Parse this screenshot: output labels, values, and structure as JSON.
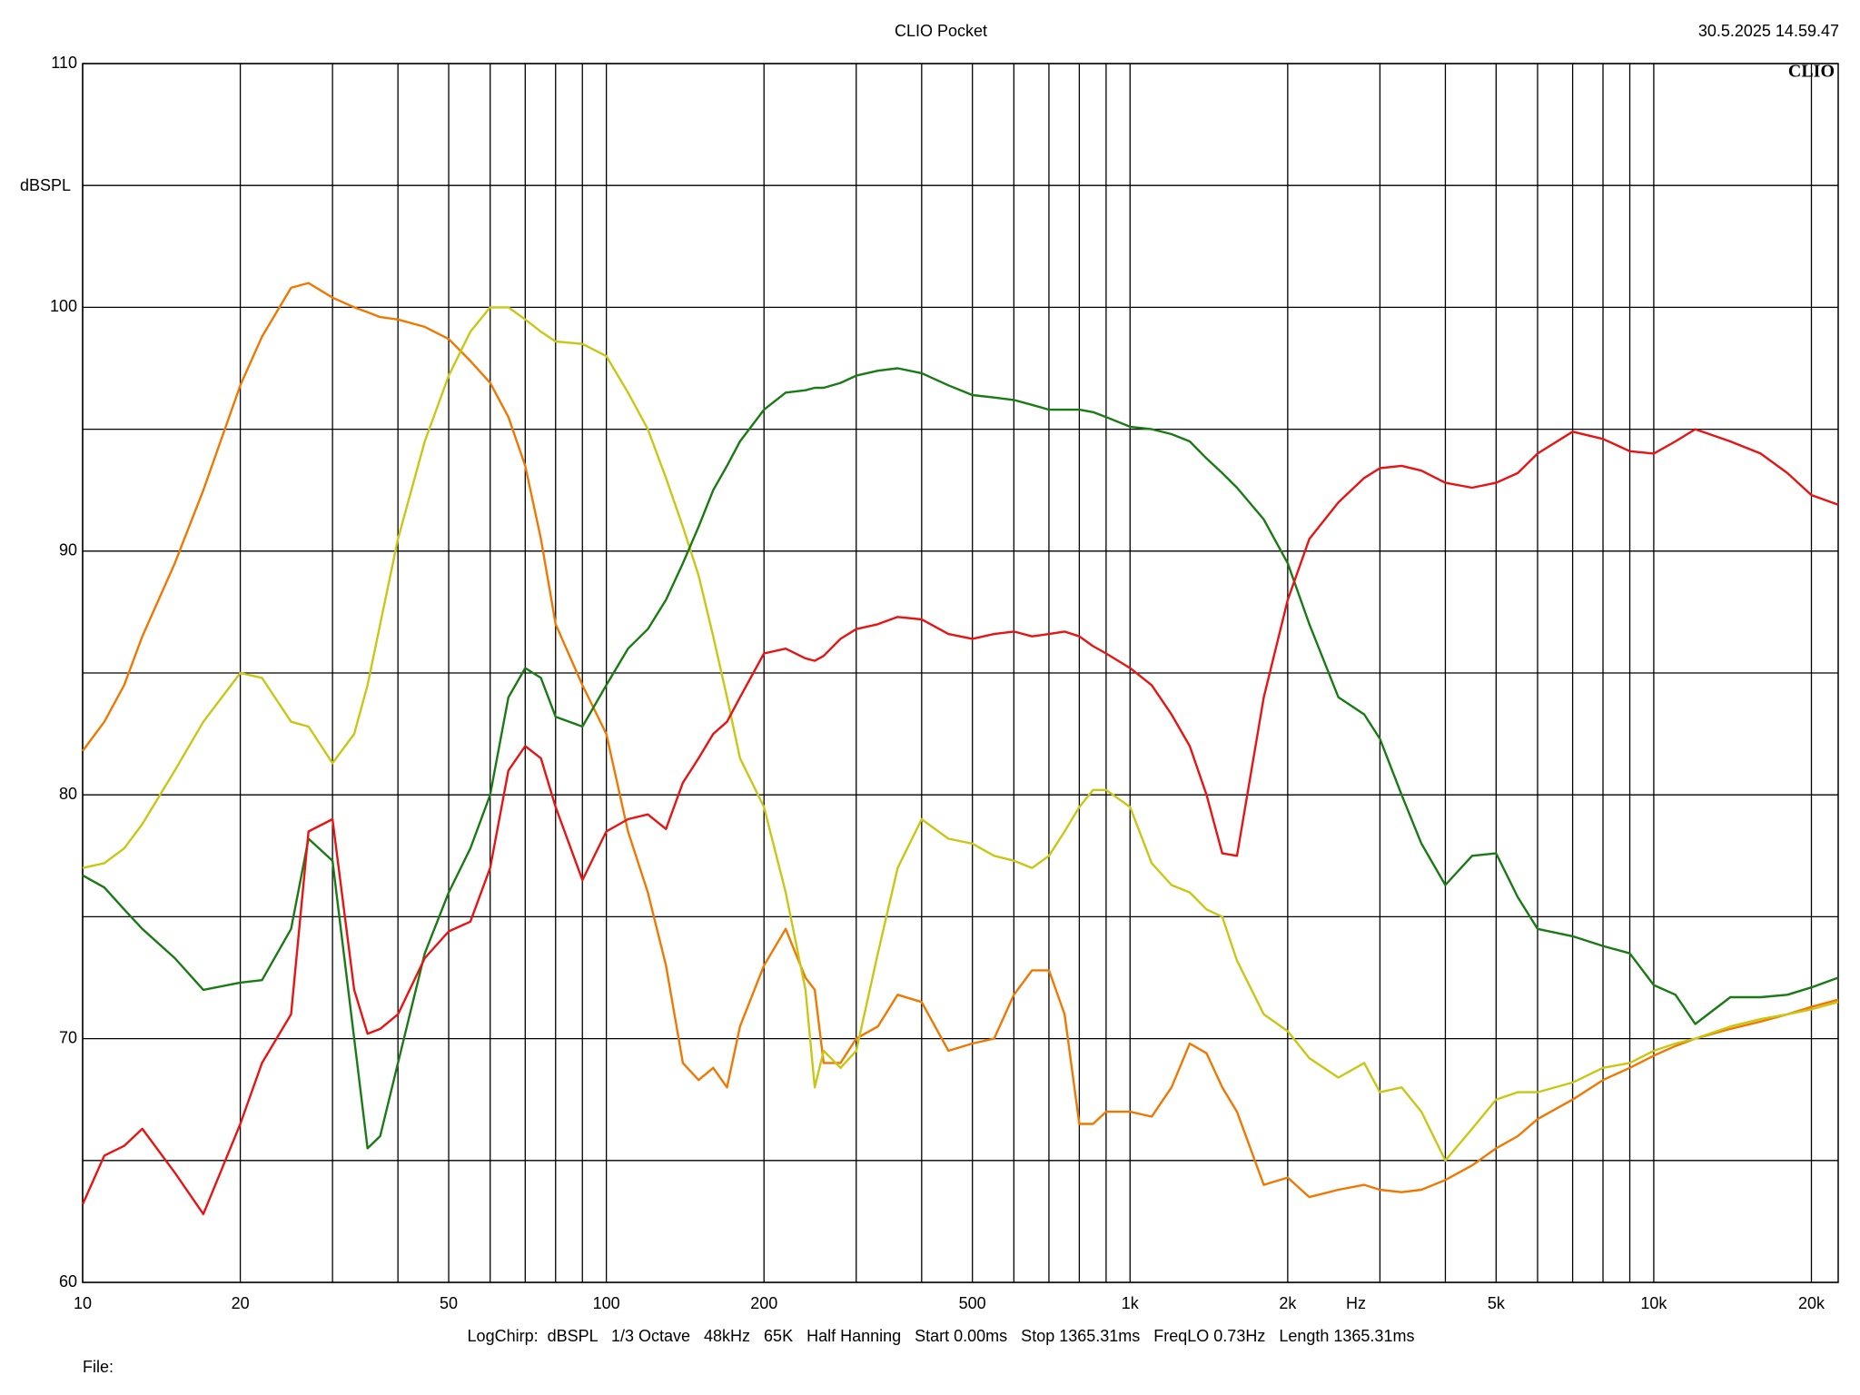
{
  "chart_data": {
    "type": "line",
    "title": "CLIO Pocket",
    "timestamp": "30.5.2025 14.59.47",
    "logo": "CLIO",
    "y_label": "dBSPL",
    "x_label": "Hz",
    "footer": "LogChirp:  dBSPL   1/3 Octave   48kHz   65K   Half Hanning   Start 0.00ms   Stop 1365.31ms   FreqLO 0.73Hz   Length 1365.31ms",
    "file_label": "File:",
    "x_log": true,
    "grid": true,
    "xlim": [
      10,
      22500
    ],
    "ylim": [
      60,
      110
    ],
    "xticks": [
      10,
      20,
      50,
      100,
      200,
      500,
      {
        "value": 1000,
        "label": "1k"
      },
      {
        "value": 2000,
        "label": "2k"
      },
      {
        "value": 5000,
        "label": "5k"
      },
      {
        "value": 10000,
        "label": "10k"
      },
      {
        "value": 20000,
        "label": "20k"
      }
    ],
    "xgrid": [
      30,
      40,
      60,
      70,
      80,
      90,
      300,
      400,
      600,
      700,
      800,
      900,
      3000,
      4000,
      6000,
      7000,
      8000,
      9000
    ],
    "yticks": [
      60,
      70,
      80,
      90,
      100,
      110
    ],
    "ygrid": [
      65,
      75,
      85,
      95,
      105
    ],
    "x": [
      10,
      11,
      12,
      13,
      15,
      17,
      20,
      22,
      25,
      27,
      30,
      33,
      35,
      37,
      40,
      45,
      50,
      55,
      60,
      65,
      70,
      75,
      80,
      90,
      100,
      110,
      120,
      130,
      140,
      150,
      160,
      170,
      180,
      200,
      220,
      240,
      250,
      260,
      280,
      300,
      330,
      360,
      400,
      450,
      500,
      550,
      600,
      650,
      700,
      750,
      800,
      850,
      900,
      1000,
      1100,
      1200,
      1300,
      1400,
      1500,
      1600,
      1800,
      2000,
      2200,
      2500,
      2800,
      3000,
      3300,
      3600,
      4000,
      4500,
      5000,
      5500,
      6000,
      7000,
      8000,
      9000,
      10000,
      11000,
      12000,
      14000,
      16000,
      18000,
      20000,
      22500
    ],
    "series": [
      {
        "color": "#f07800",
        "values": [
          81.8,
          83,
          84.5,
          86.5,
          89.5,
          92.5,
          96.8,
          98.8,
          100.8,
          101,
          100.4,
          100,
          99.8,
          99.6,
          99.5,
          99.2,
          98.7,
          97.8,
          96.9,
          95.5,
          93.5,
          90.5,
          87,
          84.5,
          82.5,
          78.5,
          76,
          73,
          69,
          68.3,
          68.8,
          68,
          70.5,
          73,
          74.5,
          72.5,
          72,
          69,
          69,
          70,
          70.5,
          71.8,
          71.5,
          69.5,
          69.8,
          70,
          71.8,
          72.8,
          72.8,
          71,
          66.5,
          66.5,
          67,
          67,
          66.8,
          68,
          69.8,
          69.4,
          68,
          67,
          64,
          64.3,
          63.5,
          63.8,
          64,
          63.8,
          63.7,
          63.8,
          64.2,
          64.8,
          65.5,
          66,
          66.7,
          67.5,
          68.3,
          68.8,
          69.3,
          69.7,
          70,
          70.4,
          70.7,
          71,
          71.3,
          71.6
        ]
      },
      {
        "color": "#c8c814",
        "values": [
          77,
          77.2,
          77.8,
          78.8,
          81,
          83,
          85,
          84.8,
          83,
          82.8,
          81.3,
          82.5,
          84.5,
          87,
          90.5,
          94.5,
          97.2,
          99,
          100,
          100,
          99.5,
          99,
          98.6,
          98.5,
          98,
          96.5,
          95,
          93,
          91,
          89,
          86.5,
          84,
          81.5,
          79.5,
          76,
          72,
          68,
          69.5,
          68.8,
          69.5,
          73.5,
          77,
          79,
          78.2,
          78,
          77.5,
          77.3,
          77,
          77.5,
          78.5,
          79.5,
          80.2,
          80.2,
          79.5,
          77.2,
          76.3,
          76,
          75.3,
          75,
          73.2,
          71,
          70.3,
          69.2,
          68.4,
          69,
          67.8,
          68,
          67,
          65,
          66.3,
          67.5,
          67.8,
          67.8,
          68.2,
          68.8,
          69,
          69.5,
          69.8,
          70,
          70.5,
          70.8,
          71,
          71.2,
          71.5
        ]
      },
      {
        "color": "#1a7a14",
        "values": [
          76.7,
          76.2,
          75.3,
          74.5,
          73.3,
          72,
          72.3,
          72.4,
          74.5,
          78.2,
          77.3,
          70,
          65.5,
          66,
          69,
          73.5,
          76,
          77.8,
          80,
          84,
          85.2,
          84.8,
          83.2,
          82.8,
          84.5,
          86,
          86.8,
          88,
          89.5,
          91,
          92.5,
          93.5,
          94.5,
          95.8,
          96.5,
          96.6,
          96.7,
          96.7,
          96.9,
          97.2,
          97.4,
          97.5,
          97.3,
          96.8,
          96.4,
          96.3,
          96.2,
          96,
          95.8,
          95.8,
          95.8,
          95.7,
          95.5,
          95.1,
          95,
          94.8,
          94.5,
          93.8,
          93.2,
          92.6,
          91.3,
          89.5,
          87,
          84,
          83.3,
          82.3,
          80,
          78,
          76.3,
          77.5,
          77.6,
          75.8,
          74.5,
          74.2,
          73.8,
          73.5,
          72.2,
          71.8,
          70.6,
          71.7,
          71.7,
          71.8,
          72.1,
          72.5
        ]
      },
      {
        "color": "#e81414",
        "values": [
          63.2,
          65.2,
          65.6,
          66.3,
          64.5,
          62.8,
          66.5,
          69,
          71,
          78.5,
          79,
          72,
          70.2,
          70.4,
          71,
          73.3,
          74.4,
          74.8,
          77,
          81,
          82,
          81.5,
          79.5,
          76.5,
          78.5,
          79,
          79.2,
          78.6,
          80.5,
          81.5,
          82.5,
          83,
          84,
          85.8,
          86,
          85.6,
          85.5,
          85.7,
          86.4,
          86.8,
          87,
          87.3,
          87.2,
          86.6,
          86.4,
          86.6,
          86.7,
          86.5,
          86.6,
          86.7,
          86.5,
          86.1,
          85.8,
          85.2,
          84.5,
          83.3,
          82,
          80,
          77.6,
          77.5,
          84,
          88,
          90.5,
          92,
          93,
          93.4,
          93.5,
          93.3,
          92.8,
          92.6,
          92.8,
          93.2,
          94,
          94.9,
          94.6,
          94.1,
          94,
          94.5,
          95,
          94.5,
          94,
          93.2,
          92.3,
          91.9
        ]
      }
    ]
  }
}
